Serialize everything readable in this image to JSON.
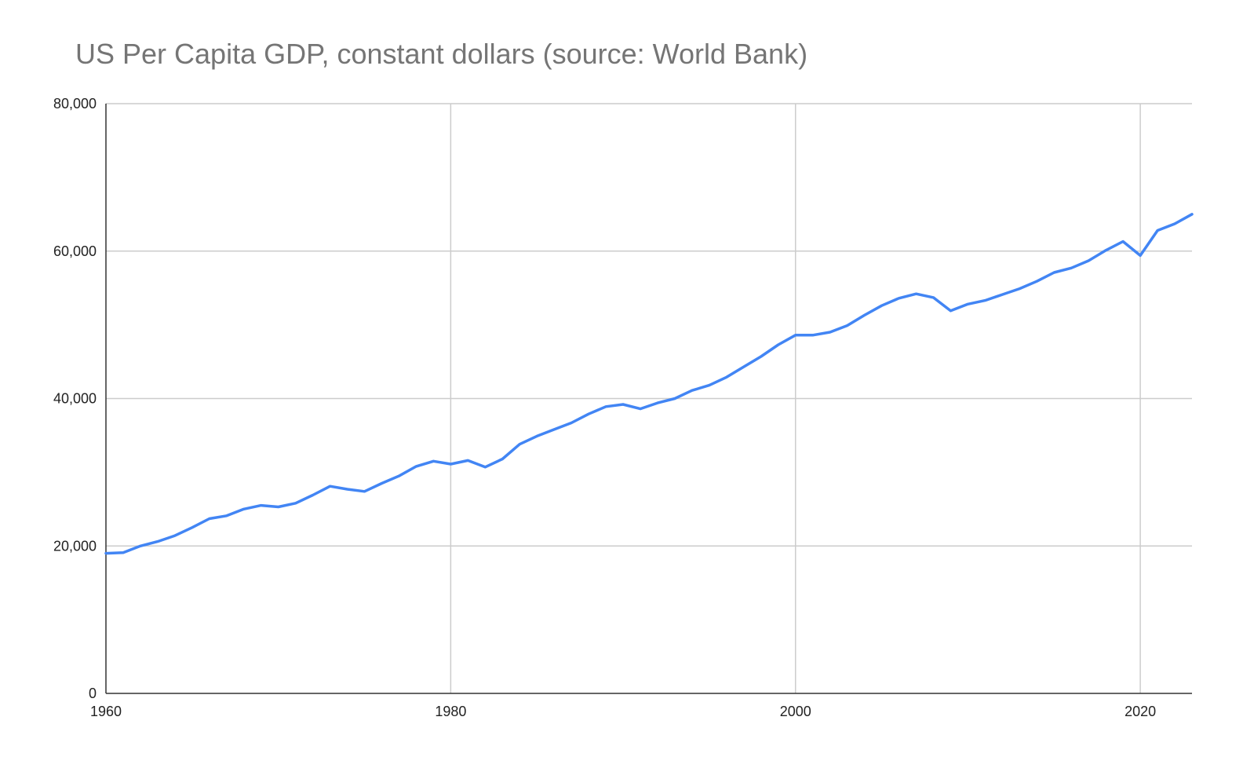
{
  "chart_data": {
    "type": "line",
    "title": "US Per Capita GDP, constant dollars (source: World Bank)",
    "xlabel": "",
    "ylabel": "",
    "xlim": [
      1960,
      2023
    ],
    "ylim": [
      0,
      80000
    ],
    "x_ticks": [
      1960,
      1980,
      2000,
      2020
    ],
    "x_tick_labels": [
      "1960",
      "1980",
      "2000",
      "2020"
    ],
    "y_ticks": [
      0,
      20000,
      40000,
      60000,
      80000
    ],
    "y_tick_labels": [
      "0",
      "20,000",
      "40,000",
      "60,000",
      "80,000"
    ],
    "grid": true,
    "legend": "none",
    "series": [
      {
        "color": "#4285f4",
        "x": [
          1960,
          1961,
          1962,
          1963,
          1964,
          1965,
          1966,
          1967,
          1968,
          1969,
          1970,
          1971,
          1972,
          1973,
          1974,
          1975,
          1976,
          1977,
          1978,
          1979,
          1980,
          1981,
          1982,
          1983,
          1984,
          1985,
          1986,
          1987,
          1988,
          1989,
          1990,
          1991,
          1992,
          1993,
          1994,
          1995,
          1996,
          1997,
          1998,
          1999,
          2000,
          2001,
          2002,
          2003,
          2004,
          2005,
          2006,
          2007,
          2008,
          2009,
          2010,
          2011,
          2012,
          2013,
          2014,
          2015,
          2016,
          2017,
          2018,
          2019,
          2020,
          2021,
          2022,
          2023
        ],
        "values": [
          19000,
          19100,
          20000,
          20600,
          21400,
          22500,
          23700,
          24100,
          25000,
          25500,
          25300,
          25800,
          26900,
          28100,
          27700,
          27400,
          28500,
          29500,
          30800,
          31500,
          31100,
          31600,
          30700,
          31800,
          33800,
          34900,
          35800,
          36700,
          37900,
          38900,
          39200,
          38600,
          39400,
          40000,
          41100,
          41800,
          42900,
          44300,
          45700,
          47300,
          48600,
          48600,
          49000,
          49900,
          51300,
          52600,
          53600,
          54200,
          53700,
          51900,
          52800,
          53300,
          54100,
          54900,
          55900,
          57100,
          57700,
          58700,
          60100,
          61300,
          59400,
          62800,
          63700,
          65000
        ]
      }
    ]
  }
}
